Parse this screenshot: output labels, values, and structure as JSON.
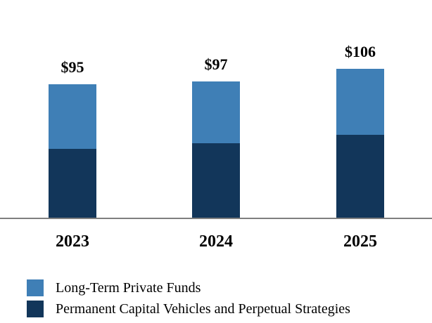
{
  "chart_data": {
    "type": "bar",
    "stacked": true,
    "categories": [
      "2023",
      "2024",
      "2025"
    ],
    "totals": [
      "$95",
      "$97",
      "$106"
    ],
    "total_values": [
      95,
      97,
      106
    ],
    "series": [
      {
        "name": "Permanent Capital Vehicles and Perpetual Strategies",
        "values": [
          49,
          53,
          59
        ],
        "color": "#12365a"
      },
      {
        "name": "Long-Term Private Funds",
        "values": [
          46,
          44,
          47
        ],
        "color": "#3f7fb6"
      }
    ],
    "ylim": [
      0,
      125
    ],
    "grid": false,
    "legend_position": "bottom-left"
  },
  "legend": {
    "items": [
      {
        "label": "Long-Term Private Funds",
        "color": "#3f7fb6"
      },
      {
        "label": "Permanent Capital Vehicles and Perpetual Strategies",
        "color": "#12365a"
      }
    ]
  }
}
